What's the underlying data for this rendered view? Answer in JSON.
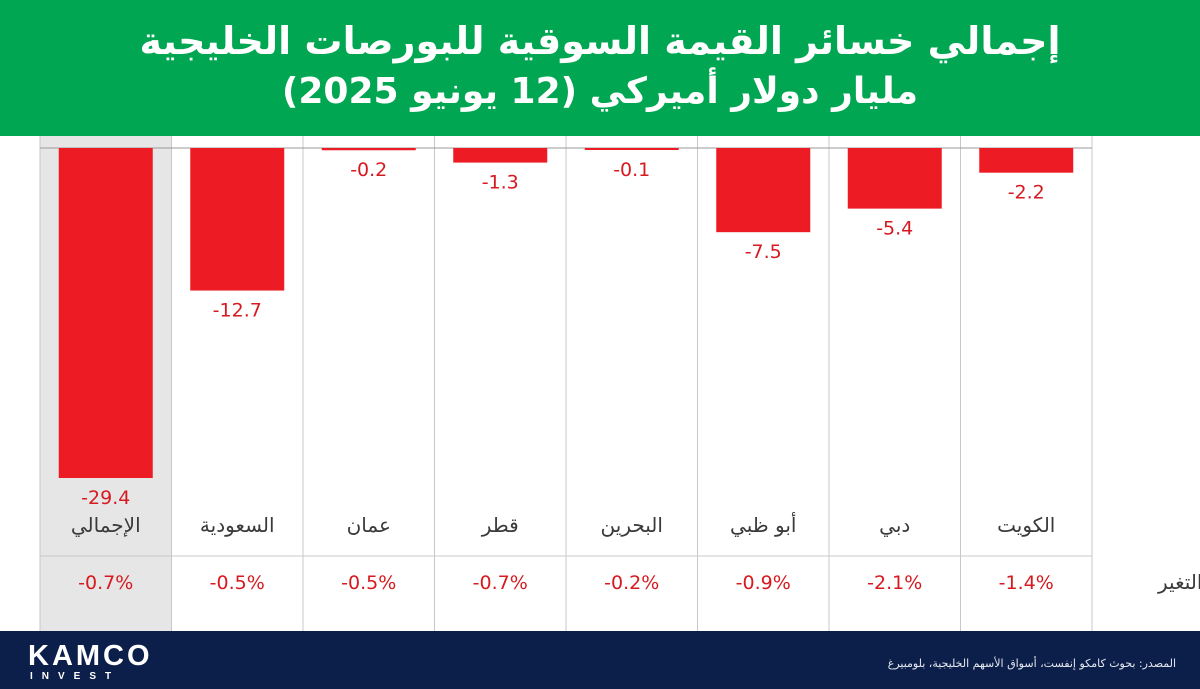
{
  "header": {
    "title_line1": "إجمالي خسائر القيمة السوقية للبورصات الخليجية",
    "title_line2": "مليار دولار أميركي (12 يونيو 2025)"
  },
  "chart_data": {
    "type": "bar",
    "title": "إجمالي خسائر القيمة السوقية للبورصات الخليجية",
    "subtitle": "مليار دولار أميركي (12 يونيو 2025)",
    "categories": [
      "الإجمالي",
      "السعودية",
      "عمان",
      "قطر",
      "البحرين",
      "أبو ظبي",
      "دبي",
      "الكويت"
    ],
    "values": [
      -29.4,
      -12.7,
      -0.2,
      -1.3,
      -0.1,
      -7.5,
      -5.4,
      -2.2
    ],
    "value_labels": [
      "-29.4",
      "-12.7",
      "-0.2",
      "-1.3",
      "-0.1",
      "-7.5",
      "-5.4",
      "-2.2"
    ],
    "change_label": "التغير",
    "changes": [
      "-0.7%",
      "-0.5%",
      "-0.5%",
      "-0.7%",
      "-0.2%",
      "-0.9%",
      "-2.1%",
      "-1.4%"
    ],
    "ylim": [
      -29.4,
      0
    ],
    "highlighted_category": "الإجمالي",
    "colors": {
      "bar": "#ed1c24",
      "highlight": "#e6e6e6",
      "grid": "#c8c8c8"
    }
  },
  "footer": {
    "brand": "KAMCO",
    "brand_sub": "INVEST",
    "source": "المصدر: بحوث كامكو إنفست، أسواق الأسهم الخليجية، بلومبيرغ"
  },
  "colors": {
    "header_bg": "#00a651",
    "footer_bg": "#0c1e4a"
  }
}
